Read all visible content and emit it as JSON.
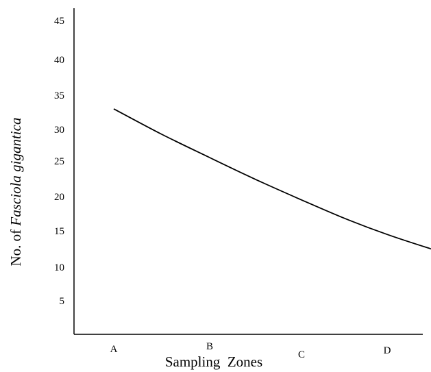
{
  "chart_data": {
    "type": "line",
    "categories": [
      "A",
      "B",
      "C",
      "D"
    ],
    "series": [
      {
        "x": [
          0.0,
          0.5,
          1.0,
          1.5,
          2.0,
          2.5,
          3.0,
          3.5,
          3.65
        ],
        "values": [
          32.0,
          28.4,
          25.1,
          22.0,
          19.1,
          16.5,
          14.2,
          12.2,
          11.7
        ]
      }
    ],
    "y_ticks": [
      "45",
      "40",
      "35",
      "30",
      "25",
      "20",
      "15",
      "10",
      "5"
    ],
    "ylim": [
      0,
      45
    ],
    "xlabel": "Sampling  Zones",
    "ylabel_prefix": "No. of ",
    "ylabel_italic": "Fasciola gigantica",
    "grid": false,
    "legend": "none",
    "line_color": "#000000"
  }
}
